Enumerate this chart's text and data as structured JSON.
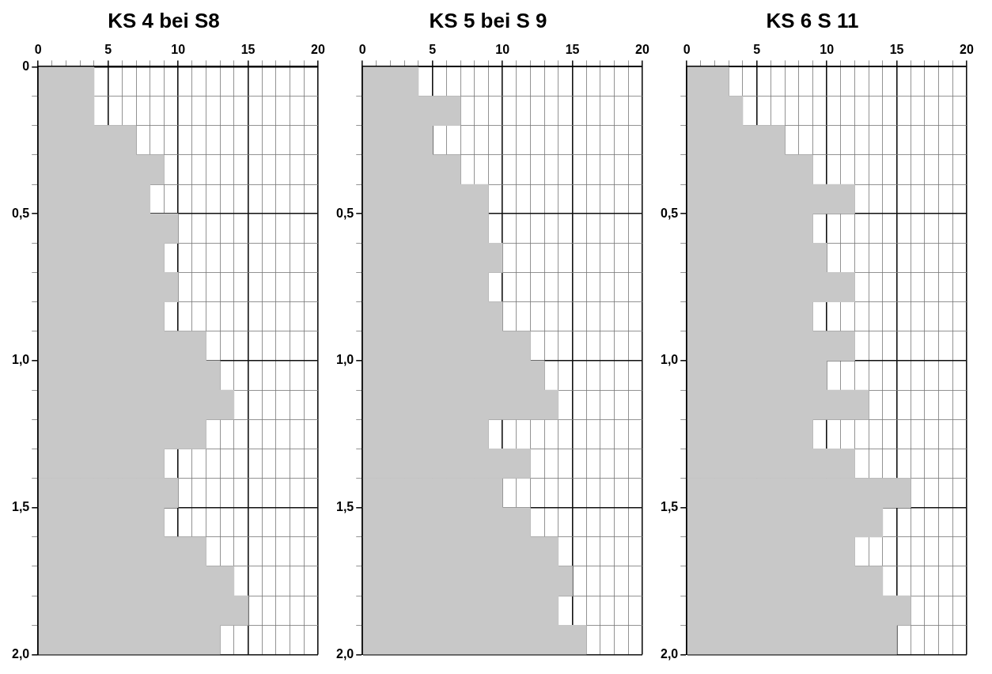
{
  "chart_data": [
    {
      "type": "histogram",
      "orientation": "horizontal",
      "title": "KS 4 bei S8",
      "bins": [
        0,
        0.1,
        0.2,
        0.3,
        0.4,
        0.5,
        0.6,
        0.7,
        0.8,
        0.9,
        1.0,
        1.1,
        1.2,
        1.3,
        1.4,
        1.5,
        1.6,
        1.7,
        1.8,
        1.9,
        2.0
      ],
      "values": [
        4,
        4,
        7,
        9,
        8,
        10,
        9,
        10,
        9,
        12,
        13,
        14,
        12,
        9,
        10,
        9,
        12,
        14,
        15,
        13
      ],
      "color": "#c8c8c8",
      "xlim": [
        0,
        20
      ],
      "xticks": [
        0,
        {
          "value": 1,
          "label": null
        },
        {
          "value": 2,
          "label": null
        },
        {
          "value": 3,
          "label": null
        },
        {
          "value": 4,
          "label": null
        },
        5,
        {
          "value": 6,
          "label": null
        },
        {
          "value": 7,
          "label": null
        },
        {
          "value": 8,
          "label": null
        },
        {
          "value": 9,
          "label": null
        },
        10,
        {
          "value": 11,
          "label": null
        },
        {
          "value": 12,
          "label": null
        },
        {
          "value": 13,
          "label": null
        },
        {
          "value": 14,
          "label": null
        },
        15,
        {
          "value": 16,
          "label": null
        },
        {
          "value": 17,
          "label": null
        },
        {
          "value": 18,
          "label": null
        },
        {
          "value": 19,
          "label": null
        },
        20
      ],
      "ylim": [
        2,
        0
      ],
      "yticks": [
        0,
        {
          "value": 0.1,
          "label": null
        },
        {
          "value": 0.2,
          "label": null
        },
        {
          "value": 0.3,
          "label": null
        },
        {
          "value": 0.4,
          "label": null
        },
        {
          "value": 0.5,
          "label": "0,5"
        },
        {
          "value": 0.6,
          "label": null
        },
        {
          "value": 0.7,
          "label": null
        },
        {
          "value": 0.8,
          "label": null
        },
        {
          "value": 0.9,
          "label": null
        },
        {
          "value": 1,
          "label": "1,0"
        },
        {
          "value": 1.1,
          "label": null
        },
        {
          "value": 1.2,
          "label": null
        },
        {
          "value": 1.3,
          "label": null
        },
        {
          "value": 1.4,
          "label": null
        },
        {
          "value": 1.5,
          "label": "1,5"
        },
        {
          "value": 1.6,
          "label": null
        },
        {
          "value": 1.7,
          "label": null
        },
        {
          "value": 1.8,
          "label": null
        },
        {
          "value": 1.9,
          "label": null
        },
        {
          "value": 2,
          "label": "2,0"
        }
      ],
      "grid": true
    },
    {
      "type": "histogram",
      "orientation": "horizontal",
      "title": "KS 5 bei S 9",
      "bins": [
        0,
        0.1,
        0.2,
        0.3,
        0.4,
        0.5,
        0.6,
        0.7,
        0.8,
        0.9,
        1.0,
        1.1,
        1.2,
        1.3,
        1.4,
        1.5,
        1.6,
        1.7,
        1.8,
        1.9,
        2.0
      ],
      "values": [
        4,
        7,
        5,
        7,
        9,
        9,
        10,
        9,
        10,
        12,
        13,
        14,
        9,
        12,
        10,
        12,
        14,
        15,
        14,
        16
      ],
      "color": "#c8c8c8",
      "xlim": [
        0,
        20
      ],
      "xticks": [
        0,
        {
          "value": 1,
          "label": null
        },
        {
          "value": 2,
          "label": null
        },
        {
          "value": 3,
          "label": null
        },
        {
          "value": 4,
          "label": null
        },
        5,
        {
          "value": 6,
          "label": null
        },
        {
          "value": 7,
          "label": null
        },
        {
          "value": 8,
          "label": null
        },
        {
          "value": 9,
          "label": null
        },
        10,
        {
          "value": 11,
          "label": null
        },
        {
          "value": 12,
          "label": null
        },
        {
          "value": 13,
          "label": null
        },
        {
          "value": 14,
          "label": null
        },
        15,
        {
          "value": 16,
          "label": null
        },
        {
          "value": 17,
          "label": null
        },
        {
          "value": 18,
          "label": null
        },
        {
          "value": 19,
          "label": null
        },
        20
      ],
      "ylim": [
        2,
        0
      ],
      "yticks": [
        {
          "value": 0.1,
          "label": null
        },
        {
          "value": 0.2,
          "label": null
        },
        {
          "value": 0.3,
          "label": null
        },
        {
          "value": 0.4,
          "label": null
        },
        {
          "value": 0.5,
          "label": "0,5"
        },
        {
          "value": 0.6,
          "label": null
        },
        {
          "value": 0.7,
          "label": null
        },
        {
          "value": 0.8,
          "label": null
        },
        {
          "value": 0.9,
          "label": null
        },
        {
          "value": 1,
          "label": "1,0"
        },
        {
          "value": 1.1,
          "label": null
        },
        {
          "value": 1.2,
          "label": null
        },
        {
          "value": 1.3,
          "label": null
        },
        {
          "value": 1.4,
          "label": null
        },
        {
          "value": 1.5,
          "label": "1,5"
        },
        {
          "value": 1.6,
          "label": null
        },
        {
          "value": 1.7,
          "label": null
        },
        {
          "value": 1.8,
          "label": null
        },
        {
          "value": 1.9,
          "label": null
        },
        {
          "value": 2,
          "label": "2,0"
        }
      ],
      "grid": true
    },
    {
      "type": "histogram",
      "orientation": "horizontal",
      "title": "KS 6 S 11",
      "bins": [
        0,
        0.1,
        0.2,
        0.3,
        0.4,
        0.5,
        0.6,
        0.7,
        0.8,
        0.9,
        1.0,
        1.1,
        1.2,
        1.3,
        1.4,
        1.5,
        1.6,
        1.7,
        1.8,
        1.9,
        2.0
      ],
      "values": [
        3,
        4,
        7,
        9,
        12,
        9,
        10,
        12,
        9,
        12,
        10,
        13,
        9,
        12,
        16,
        14,
        12,
        14,
        16,
        15
      ],
      "color": "#c8c8c8",
      "xlim": [
        0,
        20
      ],
      "xticks": [
        0,
        {
          "value": 1,
          "label": null
        },
        {
          "value": 2,
          "label": null
        },
        {
          "value": 3,
          "label": null
        },
        {
          "value": 4,
          "label": null
        },
        5,
        {
          "value": 6,
          "label": null
        },
        {
          "value": 7,
          "label": null
        },
        {
          "value": 8,
          "label": null
        },
        {
          "value": 9,
          "label": null
        },
        10,
        {
          "value": 11,
          "label": null
        },
        {
          "value": 12,
          "label": null
        },
        {
          "value": 13,
          "label": null
        },
        {
          "value": 14,
          "label": null
        },
        15,
        {
          "value": 16,
          "label": null
        },
        {
          "value": 17,
          "label": null
        },
        {
          "value": 18,
          "label": null
        },
        {
          "value": 19,
          "label": null
        },
        20
      ],
      "ylim": [
        2,
        0
      ],
      "yticks": [
        {
          "value": 0.1,
          "label": null
        },
        {
          "value": 0.2,
          "label": null
        },
        {
          "value": 0.3,
          "label": null
        },
        {
          "value": 0.4,
          "label": null
        },
        {
          "value": 0.5,
          "label": "0,5"
        },
        {
          "value": 0.6,
          "label": null
        },
        {
          "value": 0.7,
          "label": null
        },
        {
          "value": 0.8,
          "label": null
        },
        {
          "value": 0.9,
          "label": null
        },
        {
          "value": 1,
          "label": "1,0"
        },
        {
          "value": 1.1,
          "label": null
        },
        {
          "value": 1.2,
          "label": null
        },
        {
          "value": 1.3,
          "label": null
        },
        {
          "value": 1.4,
          "label": null
        },
        {
          "value": 1.5,
          "label": "1,5"
        },
        {
          "value": 1.6,
          "label": null
        },
        {
          "value": 1.7,
          "label": null
        },
        {
          "value": 1.8,
          "label": null
        },
        {
          "value": 1.9,
          "label": null
        },
        {
          "value": 2,
          "label": "2,0"
        }
      ],
      "grid": true
    }
  ]
}
